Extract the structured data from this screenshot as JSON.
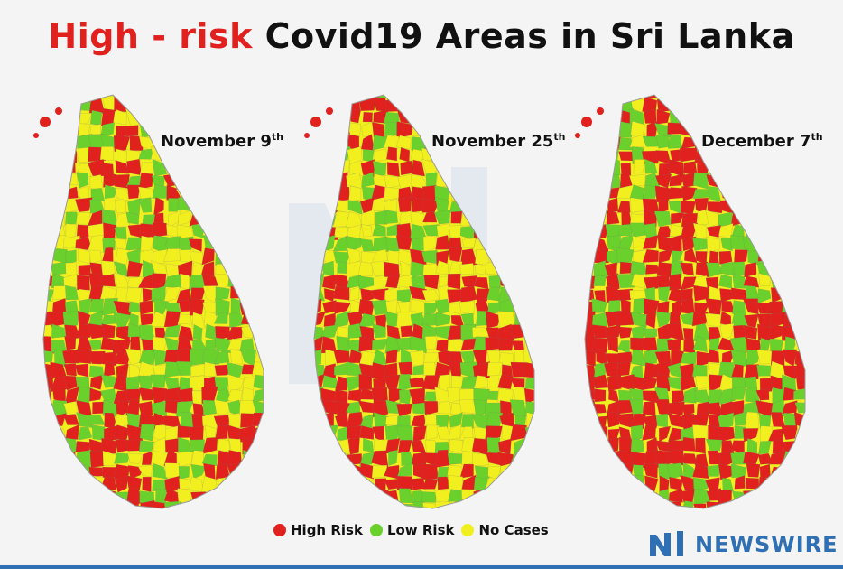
{
  "title": {
    "highlight": "High - risk",
    "rest": "Covid19 Areas in Sri Lanka"
  },
  "maps": [
    {
      "date": "November 9",
      "suffix": "th"
    },
    {
      "date": "November 25",
      "suffix": "th"
    },
    {
      "date": "December 7",
      "suffix": "th"
    }
  ],
  "legend": [
    {
      "label": "High Risk",
      "color": "#e0211e"
    },
    {
      "label": "Low Risk",
      "color": "#6ad02c"
    },
    {
      "label": "No Cases",
      "color": "#f1ef1e"
    }
  ],
  "brand": {
    "name": "NEWSWIRE",
    "color": "#2f6fb3"
  },
  "colors": {
    "high": "#e0211e",
    "low": "#6ad02c",
    "none": "#f1ef1e"
  }
}
